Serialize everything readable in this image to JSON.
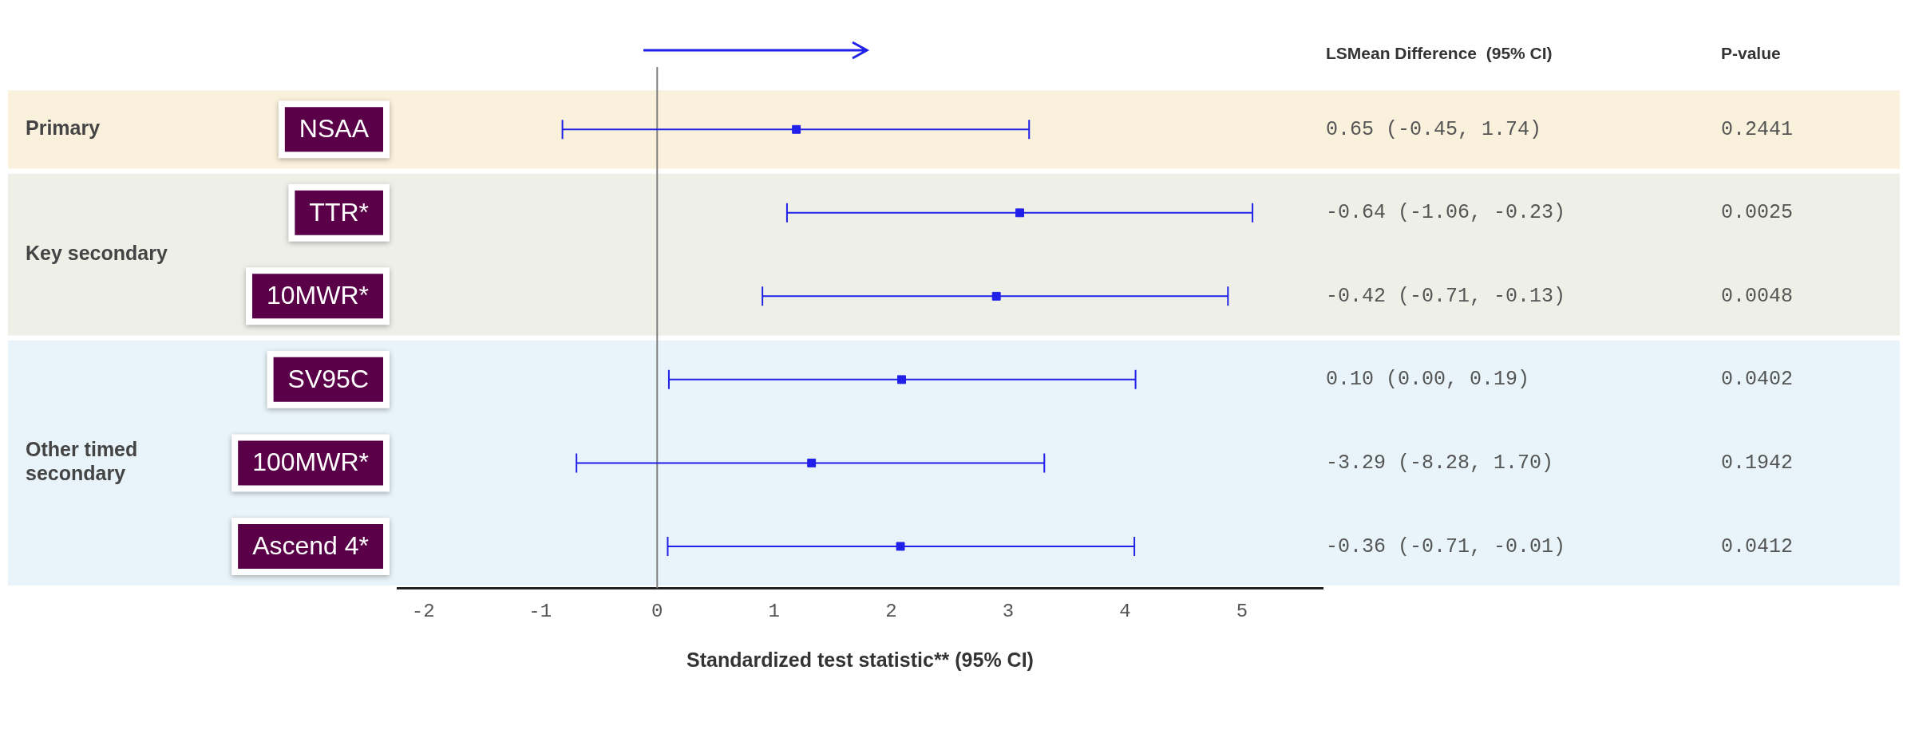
{
  "chart_data": {
    "type": "scatter",
    "orientation": "horizontal",
    "xlabel": "Standardized test statistic** (95% CI)",
    "categories": [
      "NSAA",
      "TTR*",
      "10MWR*",
      "SV95C",
      "100MWR*",
      "Ascend 4*"
    ],
    "values": [
      1.19,
      3.1,
      2.9,
      2.09,
      1.32,
      2.08
    ],
    "errors": [
      [
        -0.81,
        3.18
      ],
      [
        1.11,
        5.09
      ],
      [
        0.9,
        4.88
      ],
      [
        0.1,
        4.09
      ],
      [
        -0.69,
        3.31
      ],
      [
        0.09,
        4.08
      ]
    ],
    "color": "#2020e8",
    "marker": "square",
    "grid": false,
    "legend": false,
    "xlim": [
      -2.22,
      5.69
    ],
    "xticks": [
      -2,
      -1,
      0,
      1,
      2,
      3,
      4,
      5
    ],
    "ref_lines": [
      {
        "axis": "x",
        "value": 0,
        "color": "#808080"
      }
    ],
    "bands": [
      {
        "axis": "y",
        "from": "NSAA",
        "to": "NSAA",
        "label": "Primary",
        "color": "#faf1dc"
      },
      {
        "axis": "y",
        "from": "TTR*",
        "to": "10MWR*",
        "label": "Key secondary",
        "color": "#eef0e8"
      },
      {
        "axis": "y",
        "from": "SV95C",
        "to": "Ascend 4*",
        "label": "Other timed secondary",
        "color": "#e8f4fa"
      }
    ],
    "annotations": [
      "LSMean Difference  (95% CI)",
      "P-value",
      "0.65 (-0.45, 1.74)",
      "0.2441",
      "-0.64 (-1.06, -0.23)",
      "0.0025",
      "-0.42 (-0.71, -0.13)",
      "0.0048",
      "0.10 (0.00, 0.19)",
      "0.0402",
      "-3.29 (-8.28, 1.70)",
      "0.1942",
      "-0.36 (-0.71, -0.01)",
      "0.0412"
    ]
  }
}
